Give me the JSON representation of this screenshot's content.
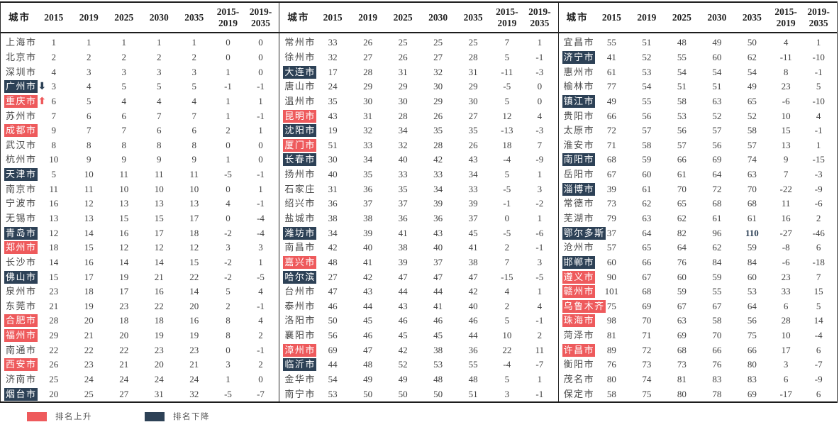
{
  "columns": [
    "城市",
    "2015",
    "2019",
    "2025",
    "2030",
    "2035",
    "2015-\n2019",
    "2019-\n2035"
  ],
  "colors": {
    "up": "#ee5a5c",
    "down": "#2d4156",
    "emphasis": "#2d4156",
    "border": "#1d1d1d",
    "text": "#3f3f3f"
  },
  "legend": [
    {
      "type": "up",
      "label": "排名上升"
    },
    {
      "type": "down",
      "label": "排名下降"
    }
  ],
  "panels": [
    {
      "rows": [
        {
          "city": "上海市",
          "values": [
            1,
            1,
            1,
            1,
            1,
            0,
            0
          ]
        },
        {
          "city": "北京市",
          "values": [
            2,
            2,
            2,
            2,
            2,
            0,
            0
          ]
        },
        {
          "city": "深圳市",
          "values": [
            4,
            3,
            3,
            3,
            3,
            1,
            0
          ]
        },
        {
          "city": "广州市",
          "highlight": "down",
          "arrow": "down",
          "values": [
            3,
            4,
            5,
            5,
            5,
            -1,
            -1
          ]
        },
        {
          "city": "重庆市",
          "highlight": "up",
          "arrow": "up",
          "values": [
            6,
            5,
            4,
            4,
            4,
            1,
            1
          ]
        },
        {
          "city": "苏州市",
          "values": [
            7,
            6,
            6,
            7,
            7,
            1,
            -1
          ]
        },
        {
          "city": "成都市",
          "highlight": "up",
          "values": [
            9,
            7,
            7,
            6,
            6,
            2,
            1
          ]
        },
        {
          "city": "武汉市",
          "values": [
            8,
            8,
            8,
            8,
            8,
            0,
            0
          ]
        },
        {
          "city": "杭州市",
          "values": [
            10,
            9,
            9,
            9,
            9,
            1,
            0
          ]
        },
        {
          "city": "天津市",
          "highlight": "down",
          "values": [
            5,
            10,
            11,
            11,
            11,
            -5,
            -1
          ]
        },
        {
          "city": "南京市",
          "values": [
            11,
            11,
            10,
            10,
            10,
            0,
            1
          ]
        },
        {
          "city": "宁波市",
          "values": [
            16,
            12,
            13,
            13,
            13,
            4,
            -1
          ]
        },
        {
          "city": "无锡市",
          "values": [
            13,
            13,
            15,
            15,
            17,
            0,
            -4
          ]
        },
        {
          "city": "青岛市",
          "highlight": "down",
          "values": [
            12,
            14,
            16,
            17,
            18,
            -2,
            -4
          ]
        },
        {
          "city": "郑州市",
          "highlight": "up",
          "values": [
            18,
            15,
            12,
            12,
            12,
            3,
            3
          ]
        },
        {
          "city": "长沙市",
          "values": [
            14,
            16,
            14,
            14,
            15,
            -2,
            1
          ]
        },
        {
          "city": "佛山市",
          "highlight": "down",
          "values": [
            15,
            17,
            19,
            21,
            22,
            -2,
            -5
          ]
        },
        {
          "city": "泉州市",
          "values": [
            23,
            18,
            17,
            16,
            14,
            5,
            4
          ]
        },
        {
          "city": "东莞市",
          "values": [
            21,
            19,
            23,
            22,
            20,
            2,
            -1
          ]
        },
        {
          "city": "合肥市",
          "highlight": "up",
          "values": [
            28,
            20,
            18,
            18,
            16,
            8,
            4
          ]
        },
        {
          "city": "福州市",
          "highlight": "up",
          "values": [
            29,
            21,
            20,
            19,
            19,
            8,
            2
          ]
        },
        {
          "city": "南通市",
          "values": [
            22,
            22,
            22,
            23,
            23,
            0,
            -1
          ]
        },
        {
          "city": "西安市",
          "highlight": "up",
          "values": [
            26,
            23,
            21,
            20,
            21,
            3,
            2
          ]
        },
        {
          "city": "济南市",
          "values": [
            25,
            24,
            24,
            24,
            24,
            1,
            0
          ]
        },
        {
          "city": "烟台市",
          "highlight": "down",
          "values": [
            20,
            25,
            27,
            31,
            32,
            -5,
            -7
          ]
        }
      ]
    },
    {
      "rows": [
        {
          "city": "常州市",
          "values": [
            33,
            26,
            25,
            25,
            25,
            7,
            1
          ]
        },
        {
          "city": "徐州市",
          "values": [
            32,
            27,
            26,
            27,
            28,
            5,
            -1
          ]
        },
        {
          "city": "大连市",
          "highlight": "down",
          "values": [
            17,
            28,
            31,
            32,
            31,
            -11,
            -3
          ]
        },
        {
          "city": "唐山市",
          "values": [
            24,
            29,
            29,
            30,
            29,
            -5,
            0
          ]
        },
        {
          "city": "温州市",
          "values": [
            35,
            30,
            30,
            29,
            30,
            5,
            0
          ]
        },
        {
          "city": "昆明市",
          "highlight": "up",
          "values": [
            43,
            31,
            28,
            26,
            27,
            12,
            4
          ]
        },
        {
          "city": "沈阳市",
          "highlight": "down",
          "values": [
            19,
            32,
            34,
            35,
            35,
            -13,
            -3
          ]
        },
        {
          "city": "厦门市",
          "highlight": "up",
          "values": [
            51,
            33,
            32,
            28,
            26,
            18,
            7
          ]
        },
        {
          "city": "长春市",
          "highlight": "down",
          "values": [
            30,
            34,
            40,
            42,
            43,
            -4,
            -9
          ]
        },
        {
          "city": "扬州市",
          "values": [
            40,
            35,
            33,
            33,
            34,
            5,
            1
          ]
        },
        {
          "city": "石家庄",
          "values": [
            31,
            36,
            35,
            34,
            33,
            -5,
            3
          ]
        },
        {
          "city": "绍兴市",
          "values": [
            36,
            37,
            37,
            39,
            39,
            -1,
            -2
          ]
        },
        {
          "city": "盐城市",
          "values": [
            38,
            38,
            36,
            36,
            37,
            0,
            1
          ]
        },
        {
          "city": "潍坊市",
          "highlight": "down",
          "values": [
            34,
            39,
            41,
            43,
            45,
            -5,
            -6
          ]
        },
        {
          "city": "南昌市",
          "values": [
            42,
            40,
            38,
            40,
            41,
            2,
            -1
          ]
        },
        {
          "city": "嘉兴市",
          "highlight": "up",
          "values": [
            48,
            41,
            39,
            37,
            38,
            7,
            3
          ]
        },
        {
          "city": "哈尔滨",
          "highlight": "down",
          "values": [
            27,
            42,
            47,
            47,
            47,
            -15,
            -5
          ]
        },
        {
          "city": "台州市",
          "values": [
            47,
            43,
            44,
            44,
            42,
            4,
            1
          ]
        },
        {
          "city": "泰州市",
          "values": [
            46,
            44,
            43,
            41,
            40,
            2,
            4
          ]
        },
        {
          "city": "洛阳市",
          "values": [
            50,
            45,
            46,
            46,
            46,
            5,
            -1
          ]
        },
        {
          "city": "襄阳市",
          "values": [
            56,
            46,
            45,
            45,
            44,
            10,
            2
          ]
        },
        {
          "city": "漳州市",
          "highlight": "up",
          "values": [
            69,
            47,
            42,
            38,
            36,
            22,
            11
          ]
        },
        {
          "city": "临沂市",
          "highlight": "down",
          "values": [
            44,
            48,
            52,
            53,
            55,
            -4,
            -7
          ]
        },
        {
          "city": "金华市",
          "values": [
            54,
            49,
            49,
            48,
            48,
            5,
            1
          ]
        },
        {
          "city": "南宁市",
          "values": [
            53,
            50,
            50,
            50,
            51,
            3,
            -1
          ]
        }
      ]
    },
    {
      "rows": [
        {
          "city": "宜昌市",
          "values": [
            55,
            51,
            48,
            49,
            50,
            4,
            1
          ]
        },
        {
          "city": "济宁市",
          "highlight": "down",
          "values": [
            41,
            52,
            55,
            60,
            62,
            -11,
            -10
          ]
        },
        {
          "city": "惠州市",
          "values": [
            61,
            53,
            54,
            54,
            54,
            8,
            -1
          ]
        },
        {
          "city": "榆林市",
          "values": [
            77,
            54,
            51,
            51,
            49,
            23,
            5
          ]
        },
        {
          "city": "镇江市",
          "highlight": "down",
          "values": [
            49,
            55,
            58,
            63,
            65,
            -6,
            -10
          ]
        },
        {
          "city": "贵阳市",
          "values": [
            66,
            56,
            53,
            52,
            52,
            10,
            4
          ]
        },
        {
          "city": "太原市",
          "values": [
            72,
            57,
            56,
            57,
            58,
            15,
            -1
          ]
        },
        {
          "city": "淮安市",
          "values": [
            71,
            58,
            57,
            56,
            57,
            13,
            1
          ]
        },
        {
          "city": "南阳市",
          "highlight": "down",
          "values": [
            68,
            59,
            66,
            69,
            74,
            9,
            -15
          ]
        },
        {
          "city": "岳阳市",
          "values": [
            67,
            60,
            61,
            64,
            63,
            7,
            -3
          ]
        },
        {
          "city": "淄博市",
          "highlight": "down",
          "values": [
            39,
            61,
            70,
            72,
            70,
            -22,
            -9
          ]
        },
        {
          "city": "常德市",
          "values": [
            73,
            62,
            65,
            68,
            68,
            11,
            -6
          ]
        },
        {
          "city": "芜湖市",
          "values": [
            79,
            63,
            62,
            61,
            61,
            16,
            2
          ]
        },
        {
          "city": "鄂尔多斯",
          "highlight": "down",
          "em": 4,
          "values": [
            37,
            64,
            82,
            96,
            110,
            -27,
            -46
          ]
        },
        {
          "city": "沧州市",
          "values": [
            57,
            65,
            64,
            62,
            59,
            -8,
            6
          ]
        },
        {
          "city": "邯郸市",
          "highlight": "down",
          "values": [
            60,
            66,
            76,
            84,
            84,
            -6,
            -18
          ]
        },
        {
          "city": "遵义市",
          "highlight": "up",
          "values": [
            90,
            67,
            60,
            59,
            60,
            23,
            7
          ]
        },
        {
          "city": "赣州市",
          "highlight": "up",
          "values": [
            101,
            68,
            59,
            55,
            53,
            33,
            15
          ]
        },
        {
          "city": "乌鲁木齐",
          "highlight": "up",
          "values": [
            75,
            69,
            67,
            67,
            64,
            6,
            5
          ]
        },
        {
          "city": "珠海市",
          "highlight": "up",
          "values": [
            98,
            70,
            63,
            58,
            56,
            28,
            14
          ]
        },
        {
          "city": "菏泽市",
          "values": [
            81,
            71,
            69,
            70,
            75,
            10,
            -4
          ]
        },
        {
          "city": "许昌市",
          "highlight": "up",
          "values": [
            89,
            72,
            68,
            66,
            66,
            17,
            6
          ]
        },
        {
          "city": "衡阳市",
          "values": [
            76,
            73,
            73,
            76,
            80,
            3,
            -7
          ]
        },
        {
          "city": "茂名市",
          "values": [
            80,
            74,
            81,
            83,
            83,
            6,
            -9
          ]
        },
        {
          "city": "保定市",
          "values": [
            58,
            75,
            80,
            78,
            69,
            -17,
            6
          ]
        }
      ]
    }
  ]
}
